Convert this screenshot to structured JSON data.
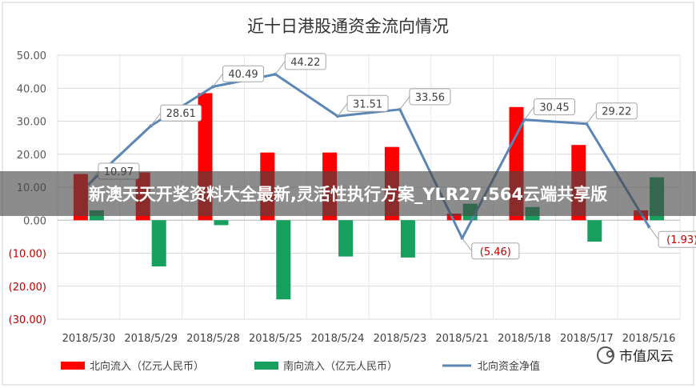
{
  "chart_data": {
    "type": "bar",
    "title": "近十日港股通资金流向情况",
    "categories": [
      "2018/5/30",
      "2018/5/29",
      "2018/5/28",
      "2018/5/25",
      "2018/5/24",
      "2018/5/23",
      "2018/5/21",
      "2018/5/18",
      "2018/5/17",
      "2018/5/16"
    ],
    "series": [
      {
        "name": "北向流入（亿元人民币）",
        "kind": "bar",
        "color": "#ff0000",
        "values": [
          14.0,
          14.5,
          38.5,
          20.5,
          20.5,
          22.2,
          2.0,
          34.3,
          22.8,
          3.0
        ]
      },
      {
        "name": "南向流入（亿元人民币）",
        "kind": "bar",
        "color": "#17a05d",
        "values": [
          3.0,
          -14.0,
          -1.5,
          -24.0,
          -11.0,
          -11.3,
          5.0,
          4.0,
          -6.5,
          13.0
        ]
      },
      {
        "name": "北向资金净值",
        "kind": "line",
        "color": "#5b86b6",
        "values": [
          10.97,
          28.61,
          40.49,
          44.22,
          31.51,
          33.56,
          -5.46,
          30.45,
          29.22,
          -1.93
        ],
        "labels": [
          "10.97",
          "28.61",
          "40.49",
          "44.22",
          "31.51",
          "33.56",
          "(5.46)",
          "30.45",
          "29.22",
          "(1.93)"
        ]
      }
    ],
    "yticks": [
      "50.00",
      "40.00",
      "30.00",
      "20.00",
      "10.00",
      "0.00",
      "(10.00)",
      "(20.00)",
      "(30.00)"
    ],
    "ylim": [
      -30,
      50
    ],
    "grid": true,
    "legend_position": "bottom"
  },
  "overlay": {
    "text": "新澳天天开奖资料大全最新,灵活性执行方案_YLR27.564云端共享版"
  },
  "watermark": {
    "text": "市值风云"
  },
  "colors": {
    "negative_tick": "#c00000",
    "axis_tick": "#595959",
    "grid": "#d9d9d9",
    "label_border": "#a6a6a6"
  }
}
